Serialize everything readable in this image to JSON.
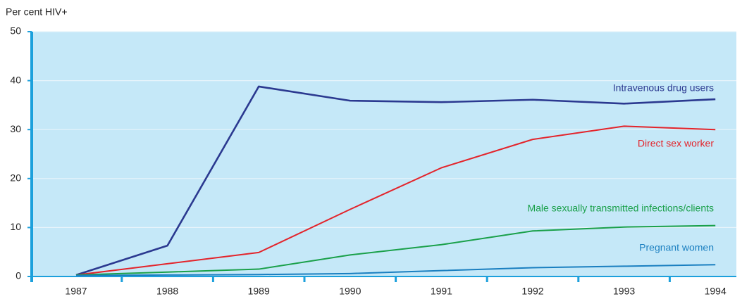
{
  "chart_data": {
    "type": "line",
    "y_axis_label": "Per cent HIV+",
    "categories": [
      "1987",
      "1988",
      "1989",
      "1990",
      "1991",
      "1992",
      "1993",
      "1994"
    ],
    "series": [
      {
        "name": "Intravenous drug users",
        "color": "#2b3990",
        "values": [
          0.3,
          6.3,
          38.8,
          35.9,
          35.6,
          36.1,
          35.3,
          36.2
        ]
      },
      {
        "name": "Direct sex worker",
        "color": "#e3242b",
        "values": [
          0.3,
          2.6,
          4.9,
          13.7,
          22.2,
          28.0,
          30.7,
          30.0
        ]
      },
      {
        "name": "Male sexually transmitted infections/clients",
        "color": "#1aa04a",
        "values": [
          0.3,
          0.9,
          1.5,
          4.4,
          6.5,
          9.3,
          10.1,
          10.4
        ]
      },
      {
        "name": "Pregnant women",
        "color": "#1a7fc0",
        "values": [
          0.2,
          0.3,
          0.4,
          0.6,
          1.2,
          1.8,
          2.1,
          2.4
        ]
      }
    ],
    "ylim": [
      0,
      50
    ],
    "yticks": [
      0,
      10,
      20,
      30,
      40,
      50
    ],
    "grid": true
  }
}
